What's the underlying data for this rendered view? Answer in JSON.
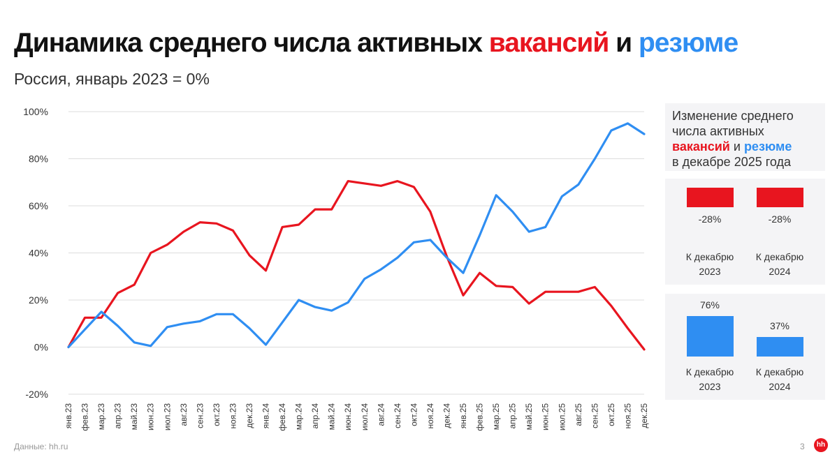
{
  "header": {
    "title_main": "Динамика среднего числа активных ",
    "title_vac": "вакансий",
    "title_and": " и ",
    "title_res": "резюме",
    "subtitle": "Россия, январь 2023 = 0%"
  },
  "colors": {
    "vacancies": "#e8151f",
    "resumes": "#2f8ef2",
    "grid": "#dddddd",
    "panel_bg": "#f4f4f6"
  },
  "chart_data": {
    "type": "line",
    "title": "Динамика среднего числа активных вакансий и резюме",
    "subtitle": "Россия, январь 2023 = 0%",
    "xlabel": "",
    "ylabel": "",
    "ylim": [
      -20,
      100
    ],
    "yticks": [
      "-20%",
      "0%",
      "20%",
      "40%",
      "60%",
      "80%",
      "100%"
    ],
    "grid": true,
    "legend": "none",
    "categories": [
      "янв.23",
      "фев.23",
      "мар.23",
      "апр.23",
      "май.23",
      "июн.23",
      "июл.23",
      "авг.23",
      "сен.23",
      "окт.23",
      "ноя.23",
      "дек.23",
      "янв.24",
      "фев.24",
      "мар.24",
      "апр.24",
      "май.24",
      "июн.24",
      "июл.24",
      "авг.24",
      "сен.24",
      "окт.24",
      "ноя.24",
      "дек.24",
      "янв.25",
      "фев.25",
      "мар.25",
      "апр.25",
      "май.25",
      "июн.25",
      "июл.25",
      "авг.25",
      "сен.25",
      "окт.25",
      "ноя.25",
      "дек.25"
    ],
    "series": [
      {
        "key": "vacancies",
        "color": "#e8151f",
        "values": [
          0,
          12.5,
          12.5,
          23,
          26.5,
          40,
          43.5,
          49,
          53,
          52.5,
          49.5,
          39,
          32.5,
          51,
          52,
          58.5,
          58.5,
          70.5,
          69.5,
          68.5,
          70.5,
          68,
          57.5,
          38.5,
          22,
          31.5,
          26,
          25.5,
          18.5,
          23.5,
          23.5,
          23.5,
          25.5,
          17.5,
          8,
          -1
        ]
      },
      {
        "key": "resumes",
        "color": "#2f8ef2",
        "values": [
          0,
          7.5,
          15,
          9,
          2,
          0.5,
          8.5,
          10,
          11,
          14,
          14,
          8,
          1,
          10.5,
          20,
          17,
          15.5,
          19,
          29,
          33,
          38,
          44.5,
          45.5,
          38,
          31.5,
          47.5,
          64.5,
          57.5,
          49,
          51,
          64,
          69,
          80,
          92,
          95,
          90.5
        ]
      }
    ]
  },
  "side_panel": {
    "heading_line1": "Изменение среднего",
    "heading_line2": "числа активных",
    "heading_vac": "вакансий",
    "heading_and": " и ",
    "heading_res": "резюме",
    "heading_line4": "в декабре 2025 года",
    "vacancies": [
      {
        "value": -28,
        "label": "-28%",
        "cap1": "К декабрю",
        "cap2": "2023"
      },
      {
        "value": -28,
        "label": "-28%",
        "cap1": "К декабрю",
        "cap2": "2024"
      }
    ],
    "resumes": [
      {
        "value": 76,
        "label": "76%",
        "cap1": "К декабрю",
        "cap2": "2023"
      },
      {
        "value": 37,
        "label": "37%",
        "cap1": "К декабрю",
        "cap2": "2024"
      }
    ]
  },
  "footer": {
    "source": "Данные: hh.ru",
    "page": "3",
    "logo": "hh"
  }
}
